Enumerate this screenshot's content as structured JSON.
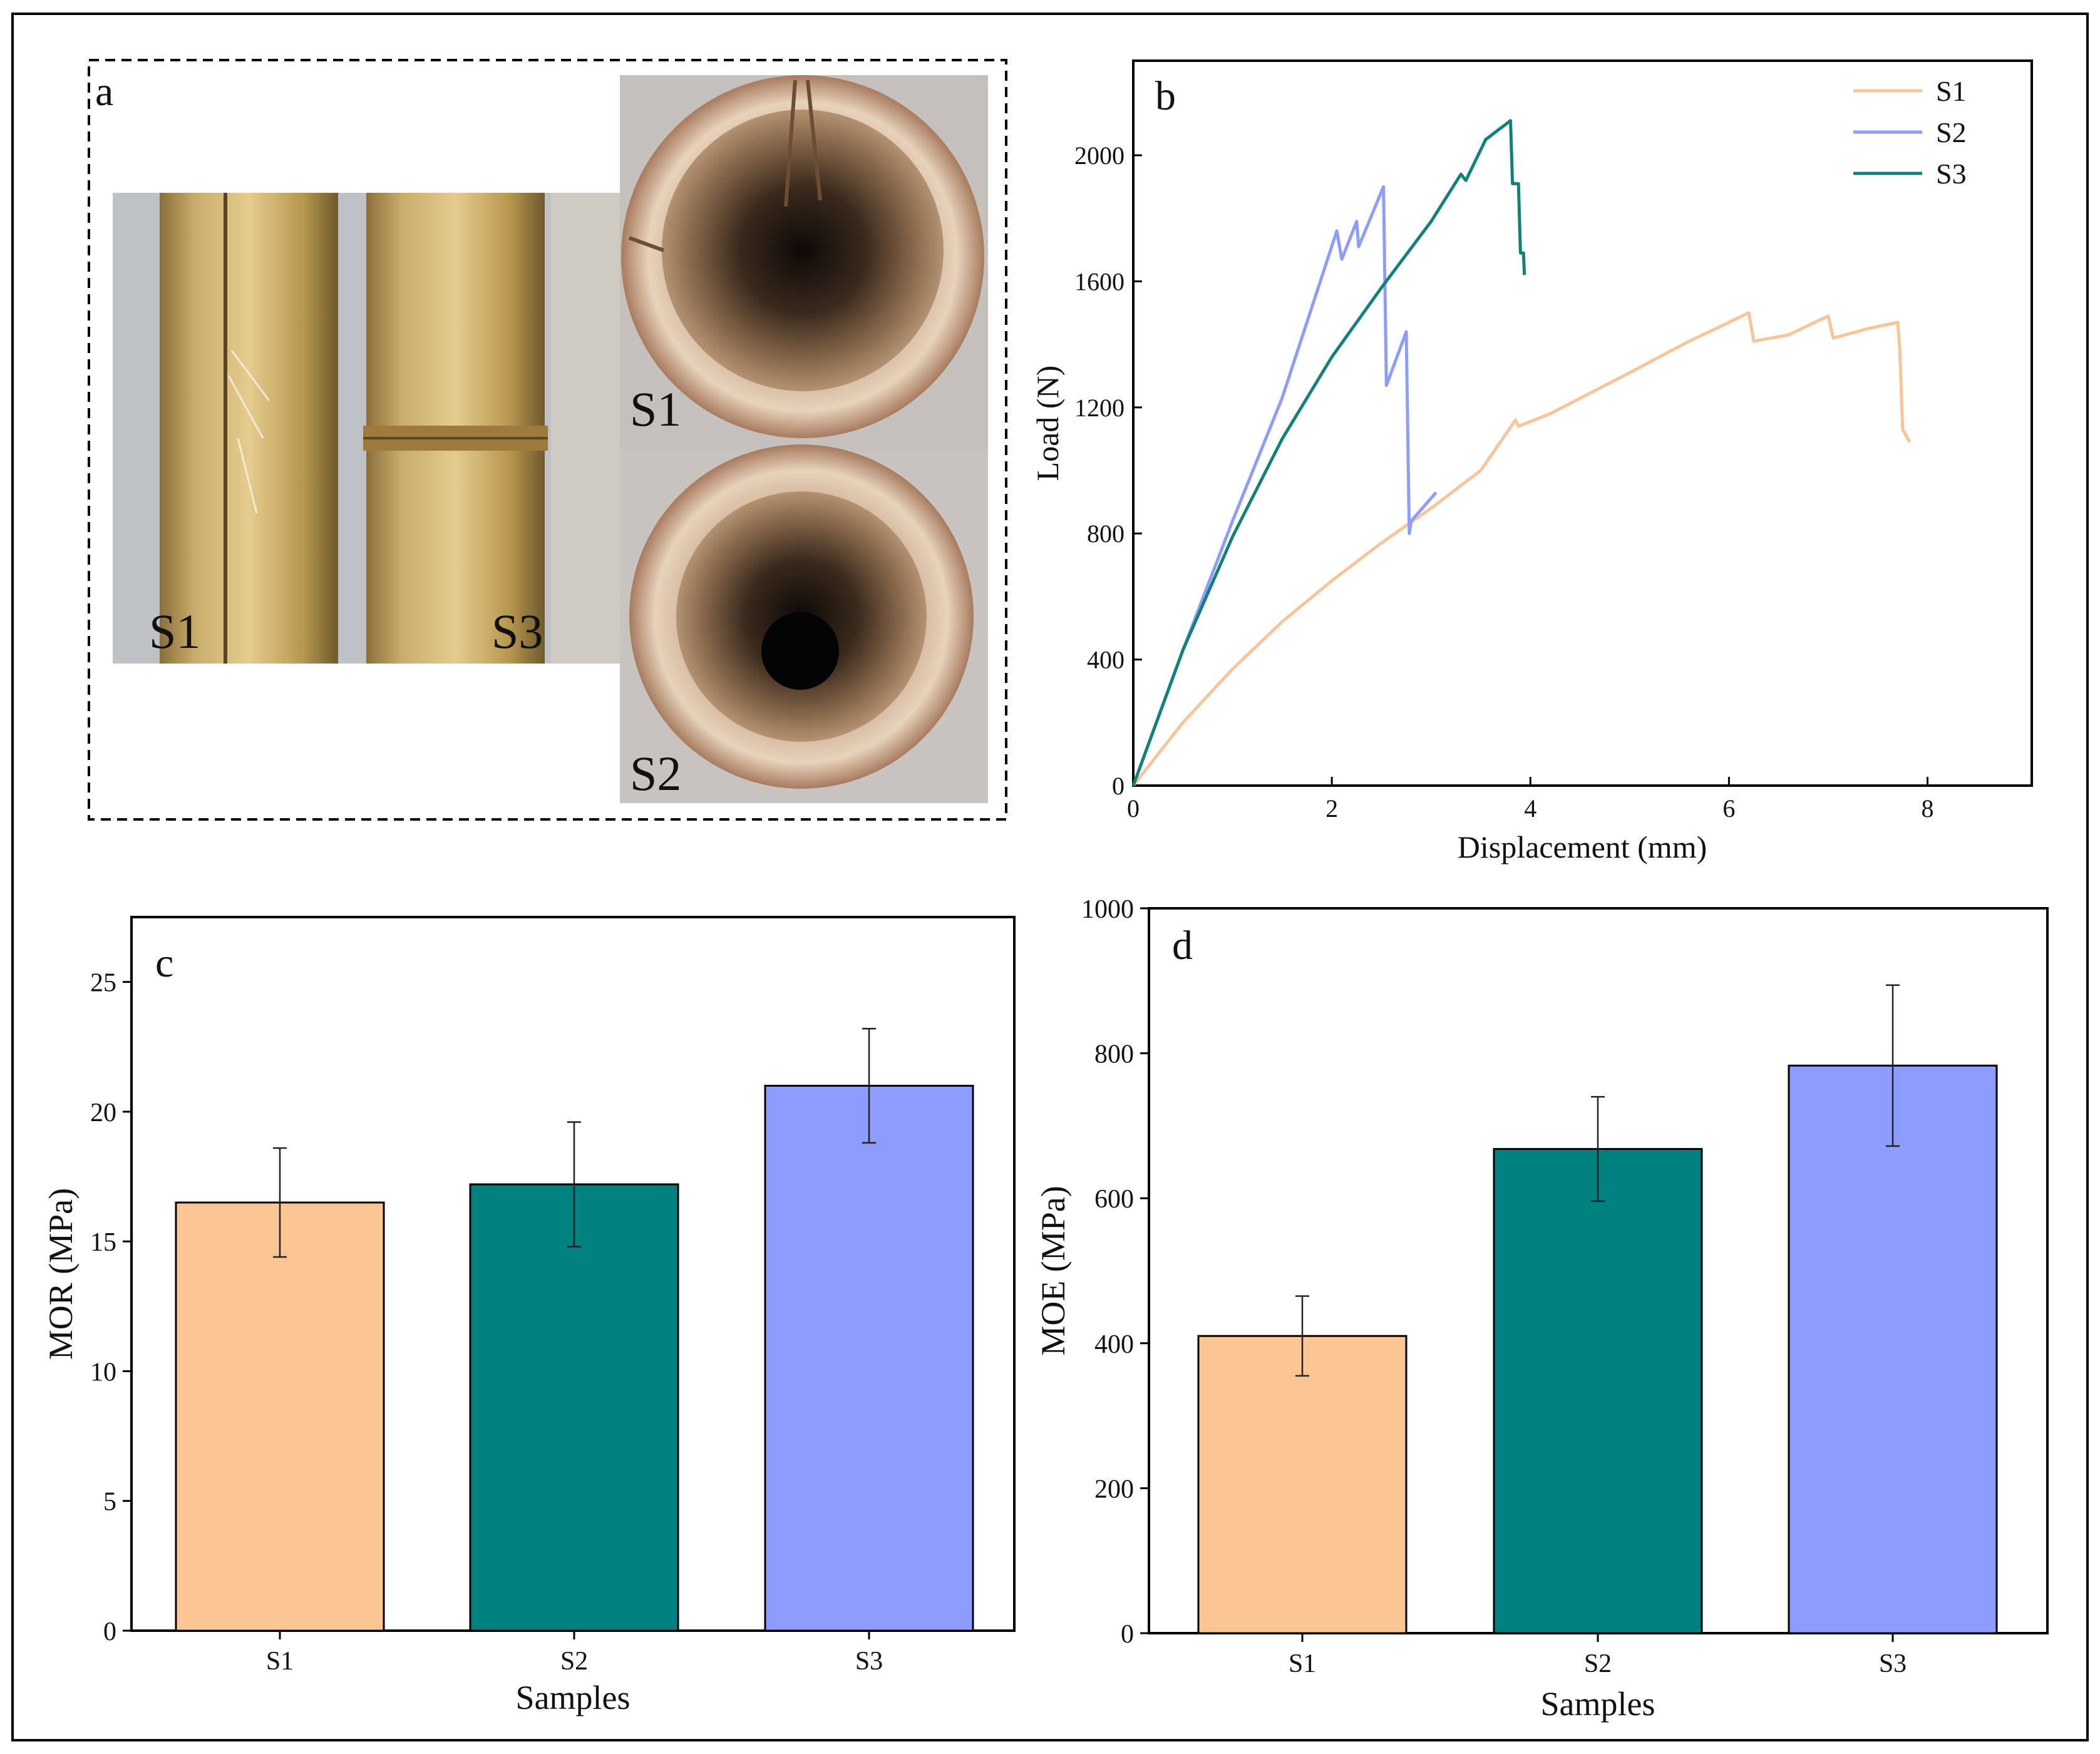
{
  "figure": {
    "panel_labels": {
      "a": "a",
      "b": "b",
      "c": "c",
      "d": "d"
    },
    "photos": {
      "side_labels": [
        "S1",
        "S3"
      ],
      "end_top_label": "S1",
      "end_bottom_label": "S2"
    },
    "colors": {
      "S1": "#fcc594",
      "S2": "#00807f",
      "S3": "#8e9bff",
      "S1_line": "#f9c49a",
      "S2_line": "#8e9bff",
      "S3_line": "#13807a"
    }
  },
  "chart_data": [
    {
      "panel": "b",
      "type": "line",
      "title": "",
      "xlabel": "Displacement (mm)",
      "ylabel": "Load (N)",
      "xlim": [
        0,
        9.05
      ],
      "ylim": [
        0,
        2300
      ],
      "xticks": [
        0,
        2,
        4,
        6,
        8
      ],
      "yticks": [
        0,
        400,
        800,
        1200,
        1600,
        2000
      ],
      "legend_position": "top-right",
      "series": [
        {
          "name": "S1",
          "color": "#f9c49a",
          "points": [
            [
              0,
              0
            ],
            [
              0.5,
              200
            ],
            [
              1,
              370
            ],
            [
              1.5,
              520
            ],
            [
              2,
              650
            ],
            [
              2.5,
              770
            ],
            [
              3,
              880
            ],
            [
              3.5,
              1000
            ],
            [
              3.85,
              1160
            ],
            [
              3.88,
              1140
            ],
            [
              4.2,
              1180
            ],
            [
              5,
              1310
            ],
            [
              5.6,
              1410
            ],
            [
              6.2,
              1500
            ],
            [
              6.25,
              1410
            ],
            [
              6.6,
              1430
            ],
            [
              7.0,
              1490
            ],
            [
              7.05,
              1420
            ],
            [
              7.4,
              1450
            ],
            [
              7.7,
              1470
            ],
            [
              7.72,
              1390
            ],
            [
              7.75,
              1130
            ],
            [
              7.82,
              1090
            ]
          ]
        },
        {
          "name": "S2",
          "color": "#8e9bff",
          "points": [
            [
              0,
              0
            ],
            [
              0.5,
              430
            ],
            [
              1,
              840
            ],
            [
              1.5,
              1230
            ],
            [
              2.05,
              1760
            ],
            [
              2.1,
              1670
            ],
            [
              2.25,
              1790
            ],
            [
              2.27,
              1710
            ],
            [
              2.52,
              1900
            ],
            [
              2.55,
              1270
            ],
            [
              2.75,
              1440
            ],
            [
              2.78,
              800
            ],
            [
              2.8,
              840
            ],
            [
              3.05,
              930
            ]
          ]
        },
        {
          "name": "S3",
          "color": "#13807a",
          "points": [
            [
              0,
              0
            ],
            [
              0.5,
              430
            ],
            [
              1,
              790
            ],
            [
              1.5,
              1100
            ],
            [
              2,
              1360
            ],
            [
              2.5,
              1580
            ],
            [
              3,
              1790
            ],
            [
              3.3,
              1940
            ],
            [
              3.35,
              1920
            ],
            [
              3.55,
              2050
            ],
            [
              3.8,
              2110
            ],
            [
              3.82,
              1910
            ],
            [
              3.88,
              1910
            ],
            [
              3.9,
              1690
            ],
            [
              3.93,
              1690
            ],
            [
              3.94,
              1620
            ]
          ]
        }
      ]
    },
    {
      "panel": "c",
      "type": "bar",
      "title": "",
      "xlabel": "Samples",
      "ylabel": "MOR (MPa)",
      "ylim": [
        0,
        27.5
      ],
      "yticks": [
        0,
        5,
        10,
        15,
        20,
        25
      ],
      "categories": [
        "S1",
        "S2",
        "S3"
      ],
      "values": [
        16.5,
        17.2,
        21.0
      ],
      "errors": [
        2.1,
        2.4,
        2.2
      ],
      "colors": [
        "#fcc594",
        "#00807f",
        "#8e9bff"
      ]
    },
    {
      "panel": "d",
      "type": "bar",
      "title": "",
      "xlabel": "Samples",
      "ylabel": "MOE (MPa)",
      "ylim": [
        0,
        1000
      ],
      "yticks": [
        0,
        200,
        400,
        600,
        800,
        1000
      ],
      "categories": [
        "S1",
        "S2",
        "S3"
      ],
      "values": [
        410,
        668,
        783
      ],
      "errors": [
        55,
        72,
        111
      ],
      "colors": [
        "#fcc594",
        "#00807f",
        "#8e9bff"
      ]
    }
  ]
}
